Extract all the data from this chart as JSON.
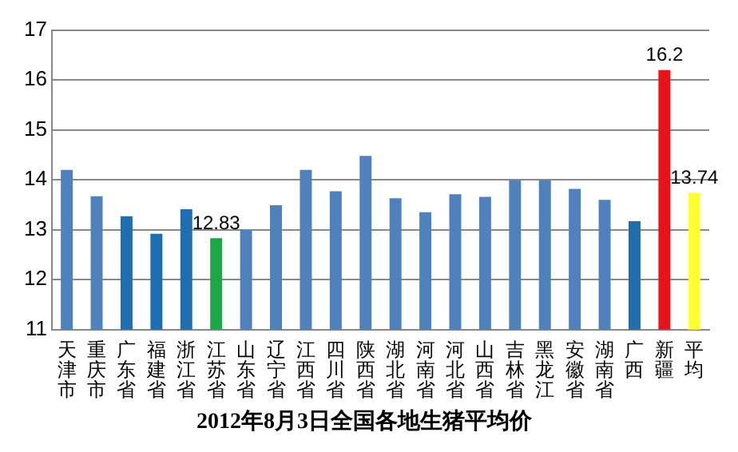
{
  "chart_data": {
    "type": "bar",
    "title": "2012年8月3日全国各地生猪平均价",
    "categories": [
      "天津市",
      "重庆市",
      "广东省",
      "福建省",
      "浙江省",
      "江苏省",
      "山东省",
      "辽宁省",
      "江西省",
      "四川省",
      "陕西省",
      "湖北省",
      "河南省",
      "河北省",
      "山西省",
      "吉林省",
      "黑龙江",
      "安徽省",
      "湖南省",
      "广西",
      "新疆",
      "平均"
    ],
    "values": [
      14.2,
      13.67,
      13.27,
      12.92,
      13.41,
      12.83,
      13.0,
      13.49,
      14.2,
      13.77,
      14.48,
      13.63,
      13.35,
      13.71,
      13.66,
      13.99,
      13.99,
      13.82,
      13.6,
      13.17,
      16.2,
      13.74
    ],
    "colors": [
      "#4f81bd",
      "#4f81bd",
      "#1f6fb0",
      "#1f6fb0",
      "#1f6fb0",
      "#1ea64a",
      "#4f81bd",
      "#4f81bd",
      "#4f81bd",
      "#4f81bd",
      "#4f81bd",
      "#4f81bd",
      "#4f81bd",
      "#4f81bd",
      "#4f81bd",
      "#4f81bd",
      "#4f81bd",
      "#4f81bd",
      "#4f81bd",
      "#1f6fb0",
      "#e8121b",
      "#ffff33"
    ],
    "value_labels": [
      null,
      null,
      null,
      null,
      null,
      "12.83",
      null,
      null,
      null,
      null,
      null,
      null,
      null,
      null,
      null,
      null,
      null,
      null,
      null,
      null,
      "16.2",
      "13.74"
    ],
    "ylim": [
      11,
      17
    ],
    "yticks": [
      11,
      12,
      13,
      14,
      15,
      16,
      17
    ],
    "grid": "y",
    "legend": false
  }
}
